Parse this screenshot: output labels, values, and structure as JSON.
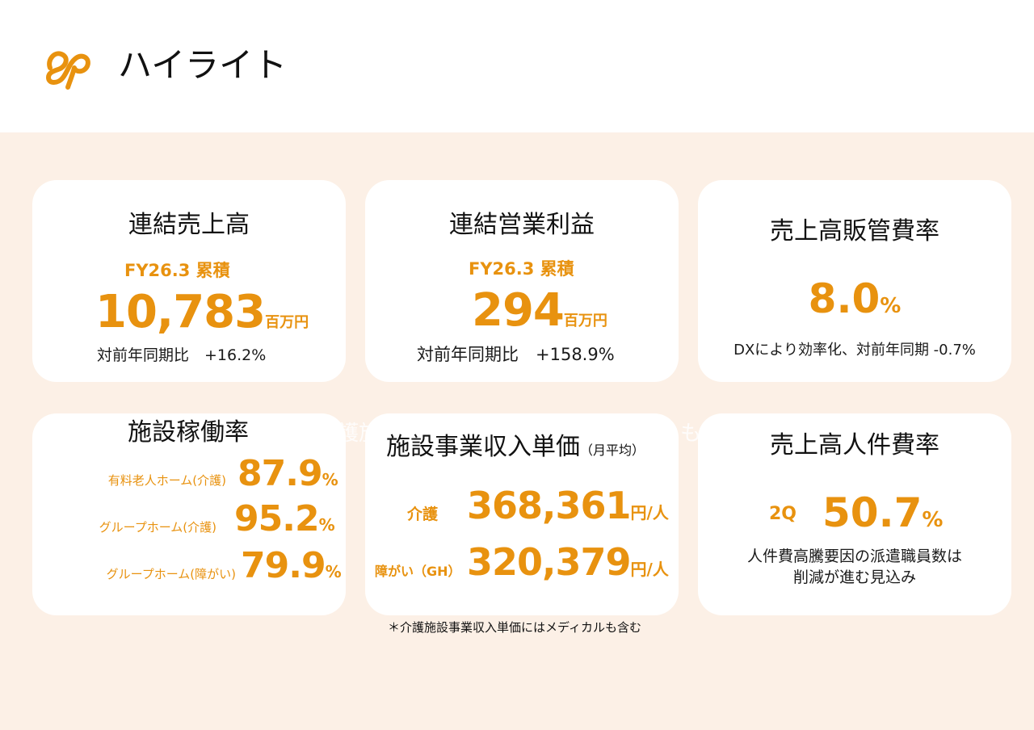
{
  "page": {
    "title": "ハイライト",
    "brand_color": "#e8920f",
    "background_color": "#fcf0e6"
  },
  "cards": {
    "sales": {
      "title": "連結売上高",
      "period": "FY26.3 累積",
      "value": "10,783",
      "unit": "百万円",
      "yoy": "対前年同期比　+16.2%"
    },
    "op_profit": {
      "title": "連結営業利益",
      "period": "FY26.3 累積",
      "value": "294",
      "unit": "百万円",
      "yoy": "対前年同期比　+158.9%"
    },
    "sga_ratio": {
      "title": "売上高販管費率",
      "value": "8.0",
      "unit": "%",
      "note": "DXにより効率化、対前年同期 -0.7%"
    },
    "occupancy": {
      "title": "施設稼働率",
      "rows": [
        {
          "label": "有料老人ホーム(介護)",
          "value": "87.9",
          "unit": "%"
        },
        {
          "label": "グループホーム(介護)",
          "value": "95.2",
          "unit": "%"
        },
        {
          "label": "グループホーム(障がい)",
          "value": "79.9",
          "unit": "%"
        }
      ]
    },
    "unit_price": {
      "title": "施設事業収入単価",
      "subtitle": "（月平均）",
      "rows": [
        {
          "label": "介護",
          "value": "368,361",
          "unit": "円/人"
        },
        {
          "label": "障がい（GH）",
          "value": "320,379",
          "unit": "円/人"
        }
      ]
    },
    "personnel_ratio": {
      "title": "売上高人件費率",
      "period": "2Q",
      "value": "50.7",
      "unit": "%",
      "note_line1": "人件費高騰要因の派遣職員数は",
      "note_line2": "削減が進む見込み"
    }
  },
  "footnote": "＊介護施設事業収入単価にはメディカルも含む",
  "ghost_text": {
    "left": "護旅",
    "right": "も"
  }
}
